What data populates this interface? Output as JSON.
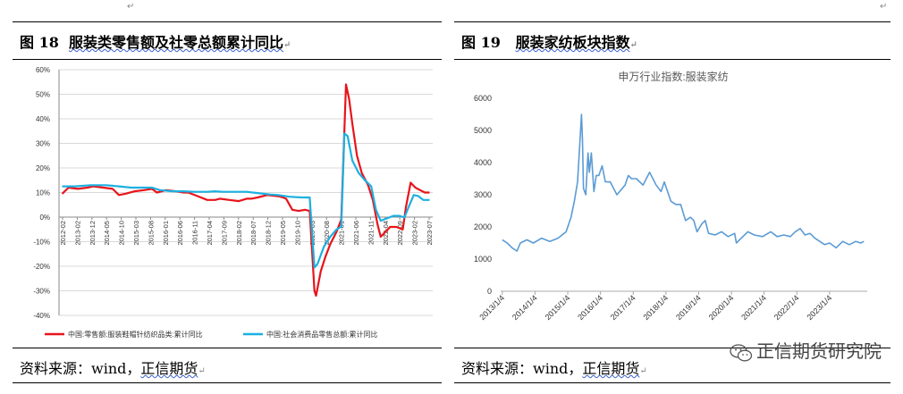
{
  "left": {
    "title_prefix": "图 18",
    "title_main": "服装类零售额及社零总额累计同比",
    "source_label": "资料来源：wind，",
    "source_company": "正信期货"
  },
  "right": {
    "title_prefix": "图 19",
    "title_main": "服装家纺板块指数",
    "source_label": "资料来源：wind，",
    "source_company": "正信期货"
  },
  "watermark": {
    "text": "正信期货研究院",
    "icon": "wechat-icon"
  },
  "colors": {
    "red": "#e8141b",
    "cyan": "#1cb0e0",
    "blue": "#5b9bd5",
    "grid": "#d9d9d9"
  },
  "chart_data": [
    {
      "type": "line",
      "ylim": [
        -40,
        60
      ],
      "yticks": [
        "60%",
        "50%",
        "40%",
        "30%",
        "20%",
        "10%",
        "0%",
        "-10%",
        "-20%",
        "-30%",
        "-40%"
      ],
      "xticks": [
        "2012-02",
        "2013-02",
        "2013-12",
        "2014-05",
        "2014-10",
        "2015-03",
        "2015-08",
        "2016-01",
        "2016-06",
        "2016-11",
        "2017-04",
        "2017-09",
        "2018-02",
        "2018-07",
        "2018-12",
        "2019-05",
        "2019-10",
        "2020-03",
        "2020-08",
        "2021-01",
        "2021-06",
        "2021-11",
        "2022-04",
        "2022-09",
        "2023-02",
        "2023-07"
      ],
      "legend_position": "bottom",
      "series": [
        {
          "name": "中国:零售额:服装鞋帽针纺织品类:累计同比",
          "color": "#e8141b",
          "x": [
            2012.1,
            2012.3,
            2012.6,
            2012.9,
            2013.1,
            2013.4,
            2013.7,
            2013.9,
            2014.1,
            2014.4,
            2014.7,
            2014.95,
            2015.1,
            2015.4,
            2015.7,
            2015.95,
            2016.1,
            2016.4,
            2016.7,
            2016.95,
            2017.1,
            2017.4,
            2017.7,
            2017.95,
            2018.1,
            2018.3,
            2018.6,
            2018.95,
            2019.1,
            2019.2,
            2019.4,
            2019.6,
            2019.8,
            2019.95,
            2020.1,
            2020.15,
            2020.3,
            2020.45,
            2020.6,
            2020.8,
            2020.95,
            2021.1,
            2021.2,
            2021.3,
            2021.45,
            2021.6,
            2021.8,
            2021.95,
            2022.1,
            2022.2,
            2022.35,
            2022.5,
            2022.7,
            2022.9,
            2023.0,
            2023.15,
            2023.3,
            2023.45,
            2023.6,
            2023.75
          ],
          "y": [
            9.5,
            12,
            11.5,
            12,
            12.5,
            12,
            11.5,
            9,
            9.5,
            10.5,
            11,
            11.5,
            10,
            11,
            10.5,
            10,
            10,
            8.5,
            7,
            7,
            7.5,
            7,
            6.5,
            7.5,
            7.5,
            8,
            9,
            8.5,
            8,
            7.5,
            3,
            2.5,
            3,
            2.5,
            -30,
            -32,
            -22,
            -16,
            -11,
            -6,
            -1,
            54,
            48,
            38,
            25,
            18,
            13,
            7,
            -3,
            -8,
            -6,
            -4,
            -4,
            -5,
            4,
            14,
            12,
            11,
            10,
            10
          ]
        },
        {
          "name": "中国:社会消费品零售总额:累计同比",
          "color": "#1cb0e0",
          "x": [
            2012.1,
            2012.5,
            2013.0,
            2013.5,
            2013.9,
            2014.3,
            2014.7,
            2014.95,
            2015.2,
            2015.6,
            2015.95,
            2016.3,
            2016.7,
            2016.95,
            2017.2,
            2017.6,
            2017.95,
            2018.3,
            2018.7,
            2018.95,
            2019.3,
            2019.7,
            2019.95,
            2020.1,
            2020.2,
            2020.4,
            2020.6,
            2020.8,
            2020.95,
            2021.05,
            2021.15,
            2021.3,
            2021.5,
            2021.7,
            2021.9,
            2022.05,
            2022.2,
            2022.4,
            2022.6,
            2022.8,
            2022.95,
            2023.1,
            2023.25,
            2023.4,
            2023.55,
            2023.75
          ],
          "y": [
            12.5,
            12.5,
            13,
            13,
            12.5,
            12,
            12,
            12,
            11,
            10.5,
            10.5,
            10.3,
            10.3,
            10.5,
            10.3,
            10.3,
            10.3,
            9.8,
            9.2,
            9,
            8.3,
            8,
            8,
            -20.5,
            -19,
            -12,
            -8,
            -5,
            -3.9,
            34,
            33,
            23,
            18,
            15,
            12.5,
            3,
            -1.5,
            -0.5,
            0.5,
            0.5,
            -0.2,
            4.5,
            9,
            8.5,
            7,
            7
          ]
        }
      ]
    },
    {
      "type": "line",
      "title": "申万行业指数:服装家纺",
      "ylim": [
        0,
        6000
      ],
      "yticks": [
        "0",
        "1000",
        "2000",
        "3000",
        "4000",
        "5000",
        "6000"
      ],
      "xticks": [
        "2013/1/4",
        "2014/1/4",
        "2015/1/4",
        "2016/1/4",
        "2017/1/4",
        "2018/1/4",
        "2019/1/4",
        "2020/1/4",
        "2021/1/4",
        "2022/1/4",
        "2023/1/4"
      ],
      "grid": false,
      "series": [
        {
          "color": "#5b9bd5",
          "x": [
            2013.0,
            2013.15,
            2013.3,
            2013.45,
            2013.55,
            2013.75,
            2013.95,
            2014.2,
            2014.45,
            2014.7,
            2014.95,
            2015.1,
            2015.2,
            2015.3,
            2015.35,
            2015.42,
            2015.45,
            2015.48,
            2015.55,
            2015.62,
            2015.66,
            2015.72,
            2015.8,
            2015.87,
            2015.95,
            2016.05,
            2016.15,
            2016.3,
            2016.5,
            2016.75,
            2016.85,
            2016.95,
            2017.1,
            2017.3,
            2017.5,
            2017.7,
            2017.85,
            2017.95,
            2018.15,
            2018.3,
            2018.45,
            2018.6,
            2018.75,
            2018.85,
            2018.95,
            2019.1,
            2019.2,
            2019.3,
            2019.5,
            2019.7,
            2019.9,
            2020.1,
            2020.15,
            2020.3,
            2020.5,
            2020.7,
            2020.95,
            2021.2,
            2021.4,
            2021.6,
            2021.8,
            2021.95,
            2022.1,
            2022.25,
            2022.4,
            2022.55,
            2022.7,
            2022.85,
            2023.0,
            2023.2,
            2023.4,
            2023.6,
            2023.8,
            2023.95,
            2024.05
          ],
          "y": [
            1600,
            1500,
            1350,
            1250,
            1500,
            1600,
            1500,
            1650,
            1550,
            1650,
            1850,
            2300,
            2800,
            3400,
            4300,
            5500,
            4700,
            3200,
            3000,
            4300,
            3700,
            4300,
            3100,
            3600,
            3600,
            3900,
            3400,
            3400,
            3000,
            3300,
            3600,
            3500,
            3500,
            3300,
            3700,
            3300,
            3100,
            3400,
            2800,
            2700,
            2700,
            2200,
            2300,
            2200,
            1850,
            2100,
            2200,
            1800,
            1750,
            1850,
            1700,
            1800,
            1500,
            1650,
            1850,
            1750,
            1700,
            1850,
            1700,
            1750,
            1700,
            1850,
            1950,
            1750,
            1800,
            1650,
            1550,
            1450,
            1500,
            1350,
            1550,
            1450,
            1550,
            1500,
            1550
          ]
        }
      ]
    }
  ]
}
